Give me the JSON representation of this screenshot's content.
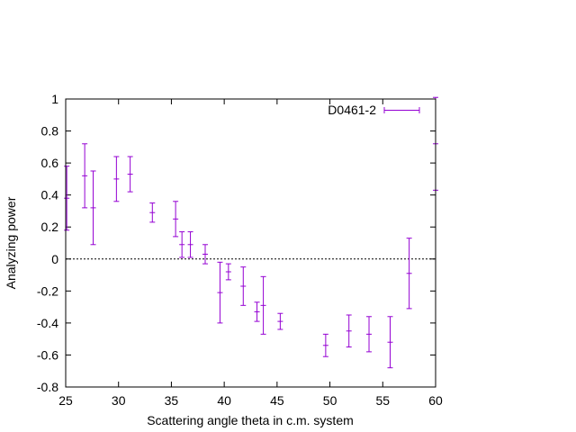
{
  "chart_data": {
    "type": "scatter",
    "xlabel": "Scattering angle theta in c.m. system",
    "ylabel": "Analyzing power",
    "xlim": [
      25,
      60
    ],
    "ylim": [
      -0.8,
      1
    ],
    "xticks": [
      25,
      30,
      35,
      40,
      45,
      50,
      55,
      60
    ],
    "yticks": [
      -0.8,
      -0.6,
      -0.4,
      -0.2,
      0,
      0.2,
      0.4,
      0.6,
      0.8,
      1
    ],
    "xtick_labels": [
      "25",
      "30",
      "35",
      "40",
      "45",
      "50",
      "55",
      "60"
    ],
    "ytick_labels": [
      "-0.8",
      "-0.6",
      "-0.4",
      "-0.2",
      "0",
      "0.2",
      "0.4",
      "0.6",
      "0.8",
      "1"
    ],
    "zero_line": true,
    "grid": false,
    "legend_position": "top-right",
    "series": [
      {
        "name": "D0461-2",
        "color": "#9400d3",
        "points": [
          {
            "x": 25.1,
            "y": 0.38,
            "err": 0.2
          },
          {
            "x": 26.8,
            "y": 0.52,
            "err": 0.2
          },
          {
            "x": 27.6,
            "y": 0.32,
            "err": 0.23
          },
          {
            "x": 29.8,
            "y": 0.5,
            "err": 0.14
          },
          {
            "x": 31.1,
            "y": 0.53,
            "err": 0.11
          },
          {
            "x": 33.2,
            "y": 0.29,
            "err": 0.06
          },
          {
            "x": 35.4,
            "y": 0.25,
            "err": 0.11
          },
          {
            "x": 36.0,
            "y": 0.09,
            "err": 0.08
          },
          {
            "x": 36.8,
            "y": 0.09,
            "err": 0.08
          },
          {
            "x": 38.2,
            "y": 0.03,
            "err": 0.06
          },
          {
            "x": 39.6,
            "y": -0.21,
            "err": 0.19
          },
          {
            "x": 40.4,
            "y": -0.08,
            "err": 0.05
          },
          {
            "x": 41.8,
            "y": -0.17,
            "err": 0.12
          },
          {
            "x": 43.1,
            "y": -0.33,
            "err": 0.06
          },
          {
            "x": 43.7,
            "y": -0.29,
            "err": 0.18
          },
          {
            "x": 45.3,
            "y": -0.39,
            "err": 0.05
          },
          {
            "x": 49.6,
            "y": -0.54,
            "err": 0.07
          },
          {
            "x": 51.8,
            "y": -0.45,
            "err": 0.1
          },
          {
            "x": 53.7,
            "y": -0.47,
            "err": 0.11
          },
          {
            "x": 55.7,
            "y": -0.52,
            "err": 0.16
          },
          {
            "x": 57.5,
            "y": -0.09,
            "err": 0.22
          },
          {
            "x": 60.0,
            "y": 0.72,
            "err": 0.29
          }
        ]
      }
    ]
  }
}
